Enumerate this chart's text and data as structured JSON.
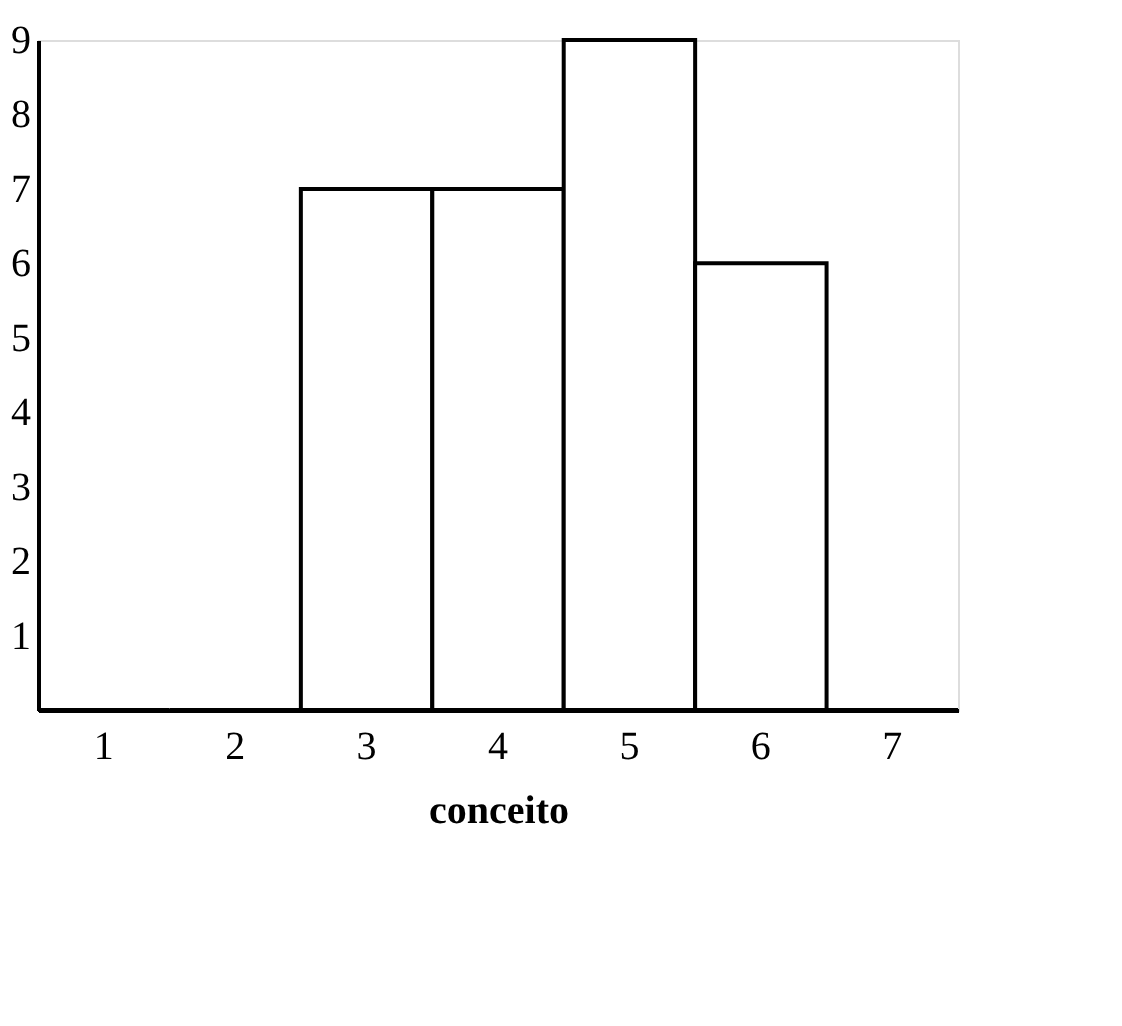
{
  "chart_data": {
    "type": "bar",
    "xlabel": "conceito",
    "categories": [
      "1",
      "2",
      "3",
      "4",
      "5",
      "6",
      "7"
    ],
    "values": [
      0,
      0,
      7,
      7,
      9,
      6,
      0
    ],
    "color": "#ffffff",
    "ylim": [
      0,
      9
    ],
    "yticks": [
      1,
      2,
      3,
      4,
      5,
      6,
      7,
      8,
      9
    ],
    "grid": false
  }
}
